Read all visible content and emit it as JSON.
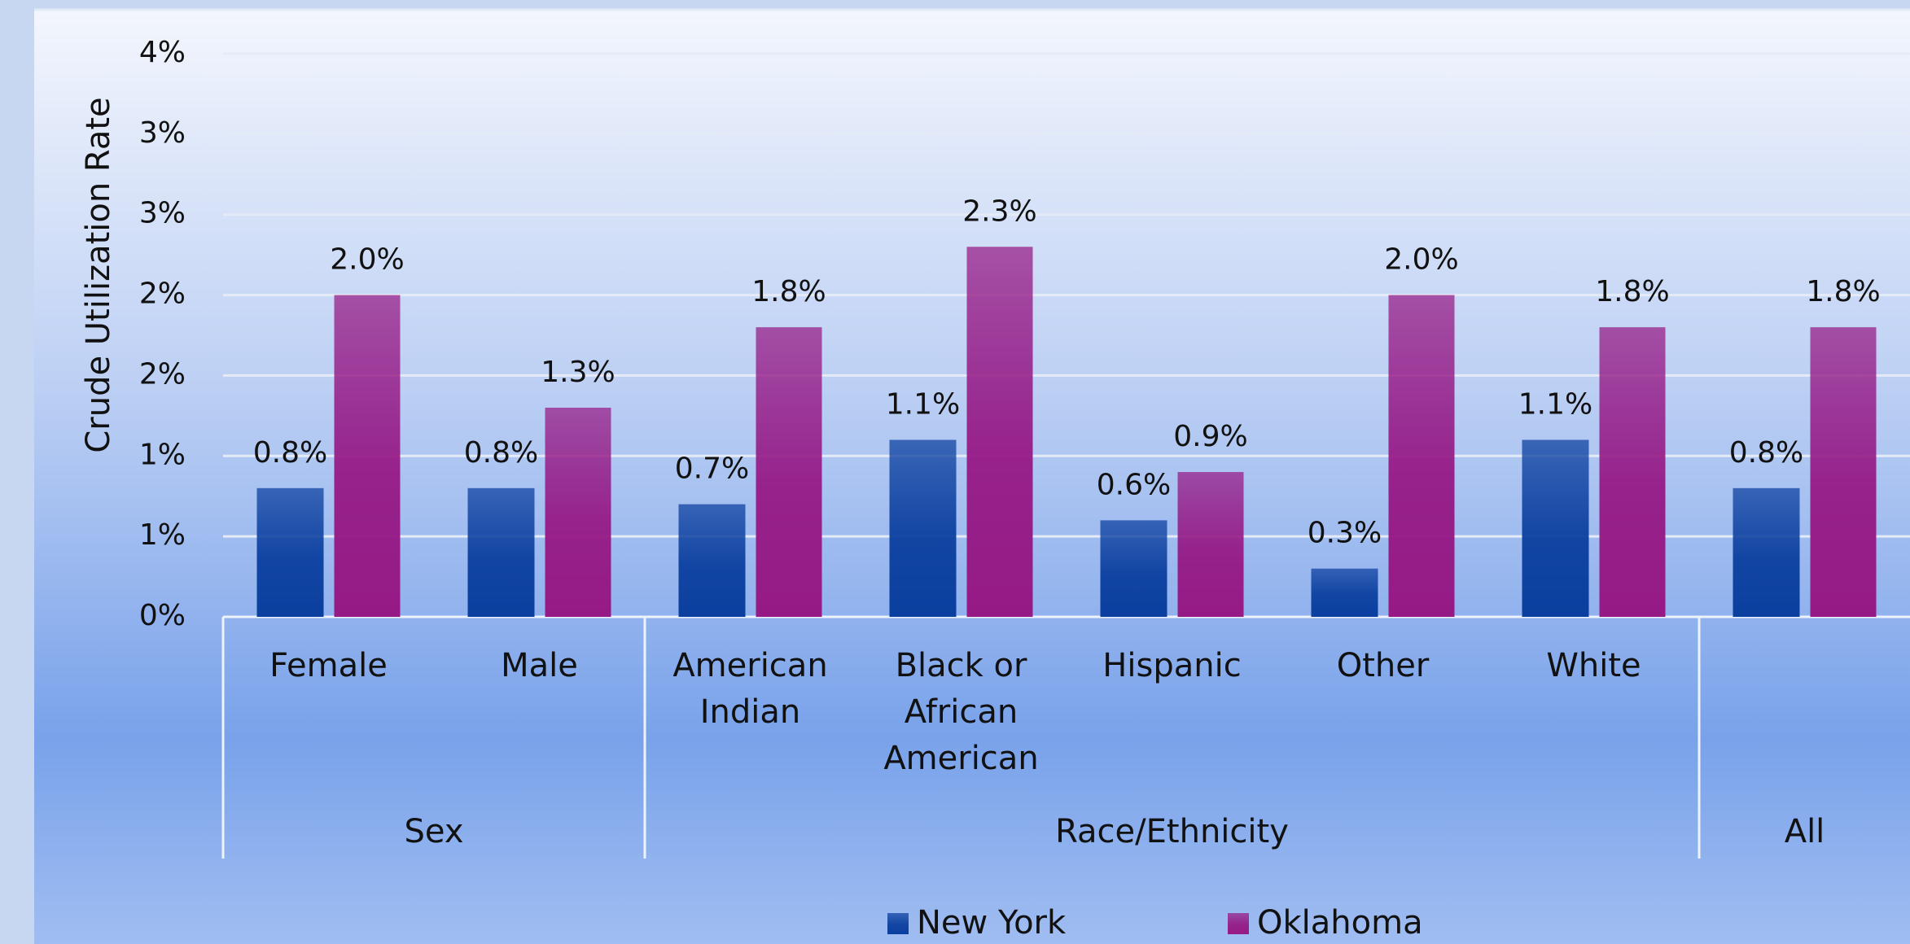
{
  "chart_data": {
    "type": "bar",
    "y_label": "Crude Utilization Rate",
    "categories": [
      "Female",
      "Male",
      "American Indian",
      "Black or African American",
      "Hispanic",
      "Other",
      "White",
      ""
    ],
    "groups": [
      {
        "label": "Sex",
        "count": 2
      },
      {
        "label": "Race/Ethnicity",
        "count": 5
      },
      {
        "label": "All",
        "count": 1
      }
    ],
    "series": [
      {
        "name": "New York",
        "color": "#0b3f9f",
        "values": [
          0.8,
          0.8,
          0.7,
          1.1,
          0.6,
          0.3,
          1.1,
          0.8
        ],
        "value_labels": [
          "0.8%",
          "0.8%",
          "0.7%",
          "1.1%",
          "0.6%",
          "0.3%",
          "1.1%",
          "0.8%"
        ]
      },
      {
        "name": "Oklahoma",
        "color": "#961a86",
        "values": [
          2.0,
          1.3,
          1.8,
          2.3,
          0.9,
          2.0,
          1.8,
          1.8
        ],
        "value_labels": [
          "2.0%",
          "1.3%",
          "1.8%",
          "2.3%",
          "0.9%",
          "2.0%",
          "1.8%",
          "1.8%"
        ]
      }
    ],
    "ylim": [
      0,
      3.5
    ],
    "yticks": [
      {
        "value": 0,
        "label": "0%"
      },
      {
        "value": 0.5,
        "label": "1%"
      },
      {
        "value": 1,
        "label": "1%"
      },
      {
        "value": 1.5,
        "label": "2%"
      },
      {
        "value": 2,
        "label": "2%"
      },
      {
        "value": 2.5,
        "label": "3%"
      },
      {
        "value": 3,
        "label": "3%"
      },
      {
        "value": 3.5,
        "label": "4%"
      }
    ],
    "grid": true,
    "legend": "bottom"
  }
}
